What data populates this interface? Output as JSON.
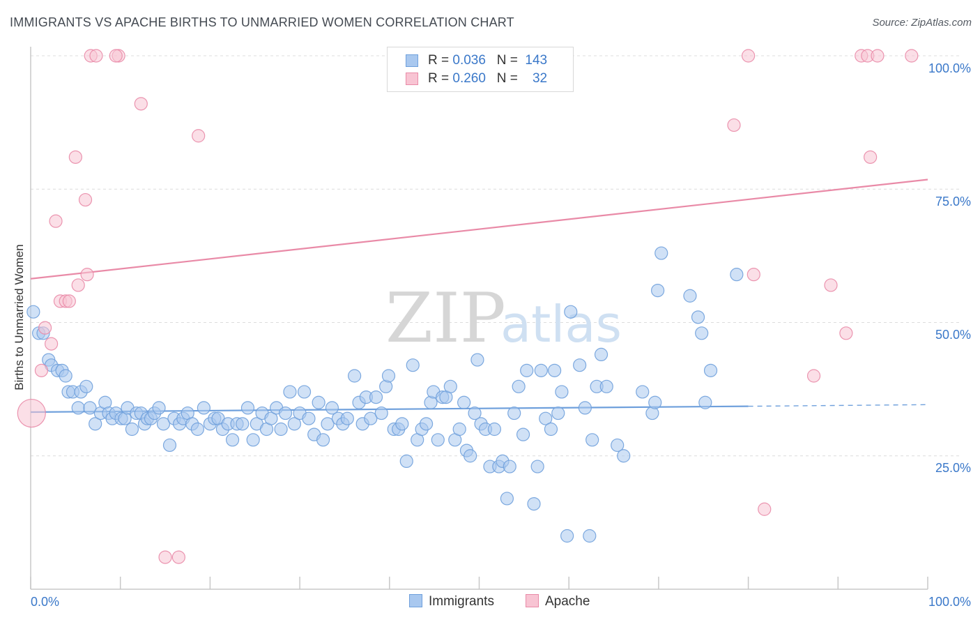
{
  "header": {
    "title": "IMMIGRANTS VS APACHE BIRTHS TO UNMARRIED WOMEN CORRELATION CHART",
    "source": "Source: ZipAtlas.com"
  },
  "watermark": {
    "zip": "ZIP",
    "atlas": "atlas"
  },
  "legend": {
    "rows": [
      {
        "r_label": "R = ",
        "r_value": "0.036",
        "n_label": "N = ",
        "n_value": "143",
        "color": "#a9c8ef",
        "border": "#6fa0dc"
      },
      {
        "r_label": "R = ",
        "r_value": "0.260",
        "n_label": "N = ",
        "n_value": "32",
        "color": "#f8c4d3",
        "border": "#e98aa7"
      }
    ]
  },
  "bottom_legend": {
    "immigrants": "Immigrants",
    "apache": "Apache"
  },
  "axis": {
    "ylabel": "Births to Unmarried Women",
    "y_ticks": [
      "25.0%",
      "50.0%",
      "75.0%",
      "100.0%"
    ],
    "x_min_label": "0.0%",
    "x_max_label": "100.0%"
  },
  "chart_data": {
    "type": "scatter",
    "title": "IMMIGRANTS VS APACHE BIRTHS TO UNMARRIED WOMEN CORRELATION CHART",
    "xlabel": "",
    "ylabel": "Births to Unmarried Women",
    "xlim": [
      0,
      100
    ],
    "ylim": [
      0,
      100
    ],
    "grid": true,
    "legend_position": "top-center",
    "series": [
      {
        "name": "Immigrants",
        "color": "#6fa0dc",
        "fill": "#a9c8ef",
        "trend": {
          "x0": 0,
          "y0": 33.2,
          "x1": 80,
          "y1": 34.3,
          "dash_to": 100,
          "dash_y": 34.6
        },
        "points": [
          [
            0.3,
            52
          ],
          [
            0.9,
            48
          ],
          [
            1.4,
            48
          ],
          [
            2,
            43
          ],
          [
            2.3,
            42
          ],
          [
            3,
            41
          ],
          [
            3.5,
            41
          ],
          [
            3.9,
            40
          ],
          [
            4.2,
            37
          ],
          [
            4.7,
            37
          ],
          [
            5.3,
            34
          ],
          [
            5.6,
            37
          ],
          [
            6.2,
            38
          ],
          [
            6.6,
            34
          ],
          [
            7.2,
            31
          ],
          [
            7.8,
            33
          ],
          [
            8.3,
            35
          ],
          [
            8.7,
            33
          ],
          [
            9.1,
            32
          ],
          [
            9.5,
            33
          ],
          [
            10.1,
            32
          ],
          [
            10.5,
            32
          ],
          [
            10.8,
            34
          ],
          [
            11.3,
            30
          ],
          [
            11.8,
            33
          ],
          [
            12.3,
            33
          ],
          [
            12.7,
            31
          ],
          [
            13,
            32
          ],
          [
            13.4,
            32
          ],
          [
            13.8,
            33
          ],
          [
            14.3,
            34
          ],
          [
            14.8,
            31
          ],
          [
            15.5,
            27
          ],
          [
            16,
            32
          ],
          [
            16.6,
            31
          ],
          [
            17,
            32
          ],
          [
            17.5,
            33
          ],
          [
            18,
            31
          ],
          [
            18.6,
            30
          ],
          [
            19.3,
            34
          ],
          [
            20,
            31
          ],
          [
            20.5,
            32
          ],
          [
            20.9,
            32
          ],
          [
            21.4,
            30
          ],
          [
            22,
            31
          ],
          [
            22.5,
            28
          ],
          [
            23,
            31
          ],
          [
            23.6,
            31
          ],
          [
            24.2,
            34
          ],
          [
            24.8,
            28
          ],
          [
            25.2,
            31
          ],
          [
            25.8,
            33
          ],
          [
            26.3,
            30
          ],
          [
            26.8,
            32
          ],
          [
            27.4,
            34
          ],
          [
            27.9,
            30
          ],
          [
            28.4,
            33
          ],
          [
            28.9,
            37
          ],
          [
            29.4,
            31
          ],
          [
            30,
            33
          ],
          [
            30.5,
            37
          ],
          [
            31,
            32
          ],
          [
            31.6,
            29
          ],
          [
            32.1,
            35
          ],
          [
            32.6,
            28
          ],
          [
            33.1,
            31
          ],
          [
            33.6,
            34
          ],
          [
            34.3,
            32
          ],
          [
            34.8,
            31
          ],
          [
            35.3,
            32
          ],
          [
            36.1,
            40
          ],
          [
            36.6,
            35
          ],
          [
            37,
            31
          ],
          [
            37.4,
            36
          ],
          [
            37.9,
            32
          ],
          [
            38.5,
            36
          ],
          [
            39.1,
            33
          ],
          [
            39.6,
            38
          ],
          [
            39.9,
            40
          ],
          [
            40.5,
            30
          ],
          [
            41,
            30
          ],
          [
            41.4,
            31
          ],
          [
            41.9,
            24
          ],
          [
            42.6,
            42
          ],
          [
            43.1,
            28
          ],
          [
            43.6,
            30
          ],
          [
            44.1,
            31
          ],
          [
            44.6,
            35
          ],
          [
            44.9,
            37
          ],
          [
            45.4,
            28
          ],
          [
            45.9,
            36
          ],
          [
            46.3,
            36
          ],
          [
            46.8,
            38
          ],
          [
            47.3,
            28
          ],
          [
            47.8,
            30
          ],
          [
            48.3,
            35
          ],
          [
            48.6,
            26
          ],
          [
            49,
            25
          ],
          [
            49.5,
            33
          ],
          [
            49.8,
            43
          ],
          [
            50.2,
            31
          ],
          [
            50.7,
            30
          ],
          [
            51.2,
            23
          ],
          [
            51.7,
            30
          ],
          [
            52.2,
            23
          ],
          [
            52.6,
            24
          ],
          [
            53.1,
            17
          ],
          [
            53.4,
            23
          ],
          [
            53.9,
            33
          ],
          [
            54.4,
            38
          ],
          [
            54.9,
            29
          ],
          [
            55.3,
            41
          ],
          [
            56.1,
            16
          ],
          [
            56.5,
            23
          ],
          [
            56.9,
            41
          ],
          [
            57.4,
            32
          ],
          [
            58,
            30
          ],
          [
            58.4,
            41
          ],
          [
            58.8,
            33
          ],
          [
            59.2,
            37
          ],
          [
            59.8,
            10
          ],
          [
            60.2,
            52
          ],
          [
            61.2,
            42
          ],
          [
            61.8,
            34
          ],
          [
            62.3,
            10
          ],
          [
            62.6,
            28
          ],
          [
            63.1,
            38
          ],
          [
            63.6,
            44
          ],
          [
            64.2,
            38
          ],
          [
            65.4,
            27
          ],
          [
            66.1,
            25
          ],
          [
            68.2,
            37
          ],
          [
            69.3,
            33
          ],
          [
            69.6,
            35
          ],
          [
            69.9,
            56
          ],
          [
            70.3,
            63
          ],
          [
            73.5,
            55
          ],
          [
            74.4,
            51
          ],
          [
            74.8,
            48
          ],
          [
            75.2,
            35
          ],
          [
            75.8,
            41
          ],
          [
            78.7,
            59
          ]
        ]
      },
      {
        "name": "Apache",
        "color": "#e98aa7",
        "fill": "#f8c4d3",
        "trend": {
          "x0": 0,
          "y0": 58.2,
          "x1": 100,
          "y1": 76.8
        },
        "points": [
          [
            0.1,
            33
          ],
          [
            1.2,
            41
          ],
          [
            1.6,
            49
          ],
          [
            2.3,
            46
          ],
          [
            2.8,
            69
          ],
          [
            3.3,
            54
          ],
          [
            3.9,
            54
          ],
          [
            5,
            81
          ],
          [
            5.3,
            57
          ],
          [
            6.1,
            73
          ],
          [
            6.3,
            59
          ],
          [
            6.7,
            100
          ],
          [
            7.3,
            100
          ],
          [
            9.8,
            100
          ],
          [
            12.3,
            91
          ],
          [
            15,
            6
          ],
          [
            16.5,
            6
          ],
          [
            18.7,
            85
          ],
          [
            80,
            100
          ],
          [
            78.4,
            87
          ],
          [
            80.6,
            59
          ],
          [
            81.8,
            15
          ],
          [
            87.3,
            40
          ],
          [
            89.2,
            57
          ],
          [
            90.9,
            48
          ],
          [
            92.6,
            100
          ],
          [
            93.3,
            100
          ],
          [
            93.6,
            81
          ],
          [
            94.4,
            100
          ],
          [
            98.2,
            100
          ],
          [
            9.5,
            100
          ],
          [
            4.3,
            54
          ]
        ]
      }
    ]
  }
}
